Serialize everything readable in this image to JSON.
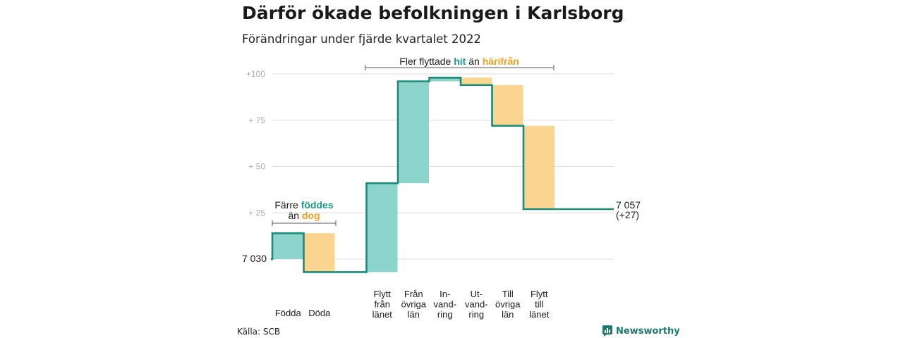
{
  "title": "Därför ökade befolkningen i Karlsborg",
  "subtitle": "Förändringar under fjärde kvartalet 2022",
  "source": "Källa: SCB",
  "brand": "Newsworthy",
  "colors": {
    "increase": "#8dd5cc",
    "decrease": "#fad58f",
    "line": "#1a8c78",
    "highlight_teal": "#1a9a85",
    "highlight_orange": "#f0a020",
    "grid": "#dddddd",
    "tick": "#aaaaaa"
  },
  "annotations": {
    "top": {
      "prefix": "Fler flyttade ",
      "hit": "hit",
      "mid": " än ",
      "harifran": "härifrån"
    },
    "left": {
      "line1_prefix": "Färre ",
      "fodda": "föddes",
      "line2_prefix": "än ",
      "dog": "dog"
    },
    "start_label": "7 030",
    "end_label": "7 057",
    "end_change": "(+27)"
  },
  "chart_data": {
    "type": "waterfall",
    "title": "Därför ökade befolkningen i Karlsborg",
    "subtitle": "Förändringar under fjärde kvartalet 2022",
    "start_value": 7030,
    "end_value": 7057,
    "net_change": 27,
    "yticks": [
      {
        "value": 100,
        "label": "+100"
      },
      {
        "value": 75,
        "label": "+ 75"
      },
      {
        "value": 50,
        "label": "+ 50"
      },
      {
        "value": 25,
        "label": "+ 25"
      }
    ],
    "ylim": [
      -7,
      100
    ],
    "grid": true,
    "steps": [
      {
        "label": [
          "Födda"
        ],
        "change": 14,
        "kind": "increase"
      },
      {
        "label": [
          "Döda"
        ],
        "change": -21,
        "kind": "decrease"
      },
      {
        "label": [],
        "change": 0,
        "kind": "gap"
      },
      {
        "label": [
          "Flytt",
          "från",
          "länet"
        ],
        "change": 48,
        "kind": "increase"
      },
      {
        "label": [
          "Från",
          "övriga",
          "län"
        ],
        "change": 55,
        "kind": "increase"
      },
      {
        "label": [
          "In-",
          "vand-",
          "ring"
        ],
        "change": 2,
        "kind": "increase"
      },
      {
        "label": [
          "Ut-",
          "vand-",
          "ring"
        ],
        "change": -4,
        "kind": "decrease"
      },
      {
        "label": [
          "Till",
          "övriga",
          "län"
        ],
        "change": -22,
        "kind": "decrease"
      },
      {
        "label": [
          "Flytt",
          "till",
          "länet"
        ],
        "change": -45,
        "kind": "decrease"
      }
    ]
  }
}
